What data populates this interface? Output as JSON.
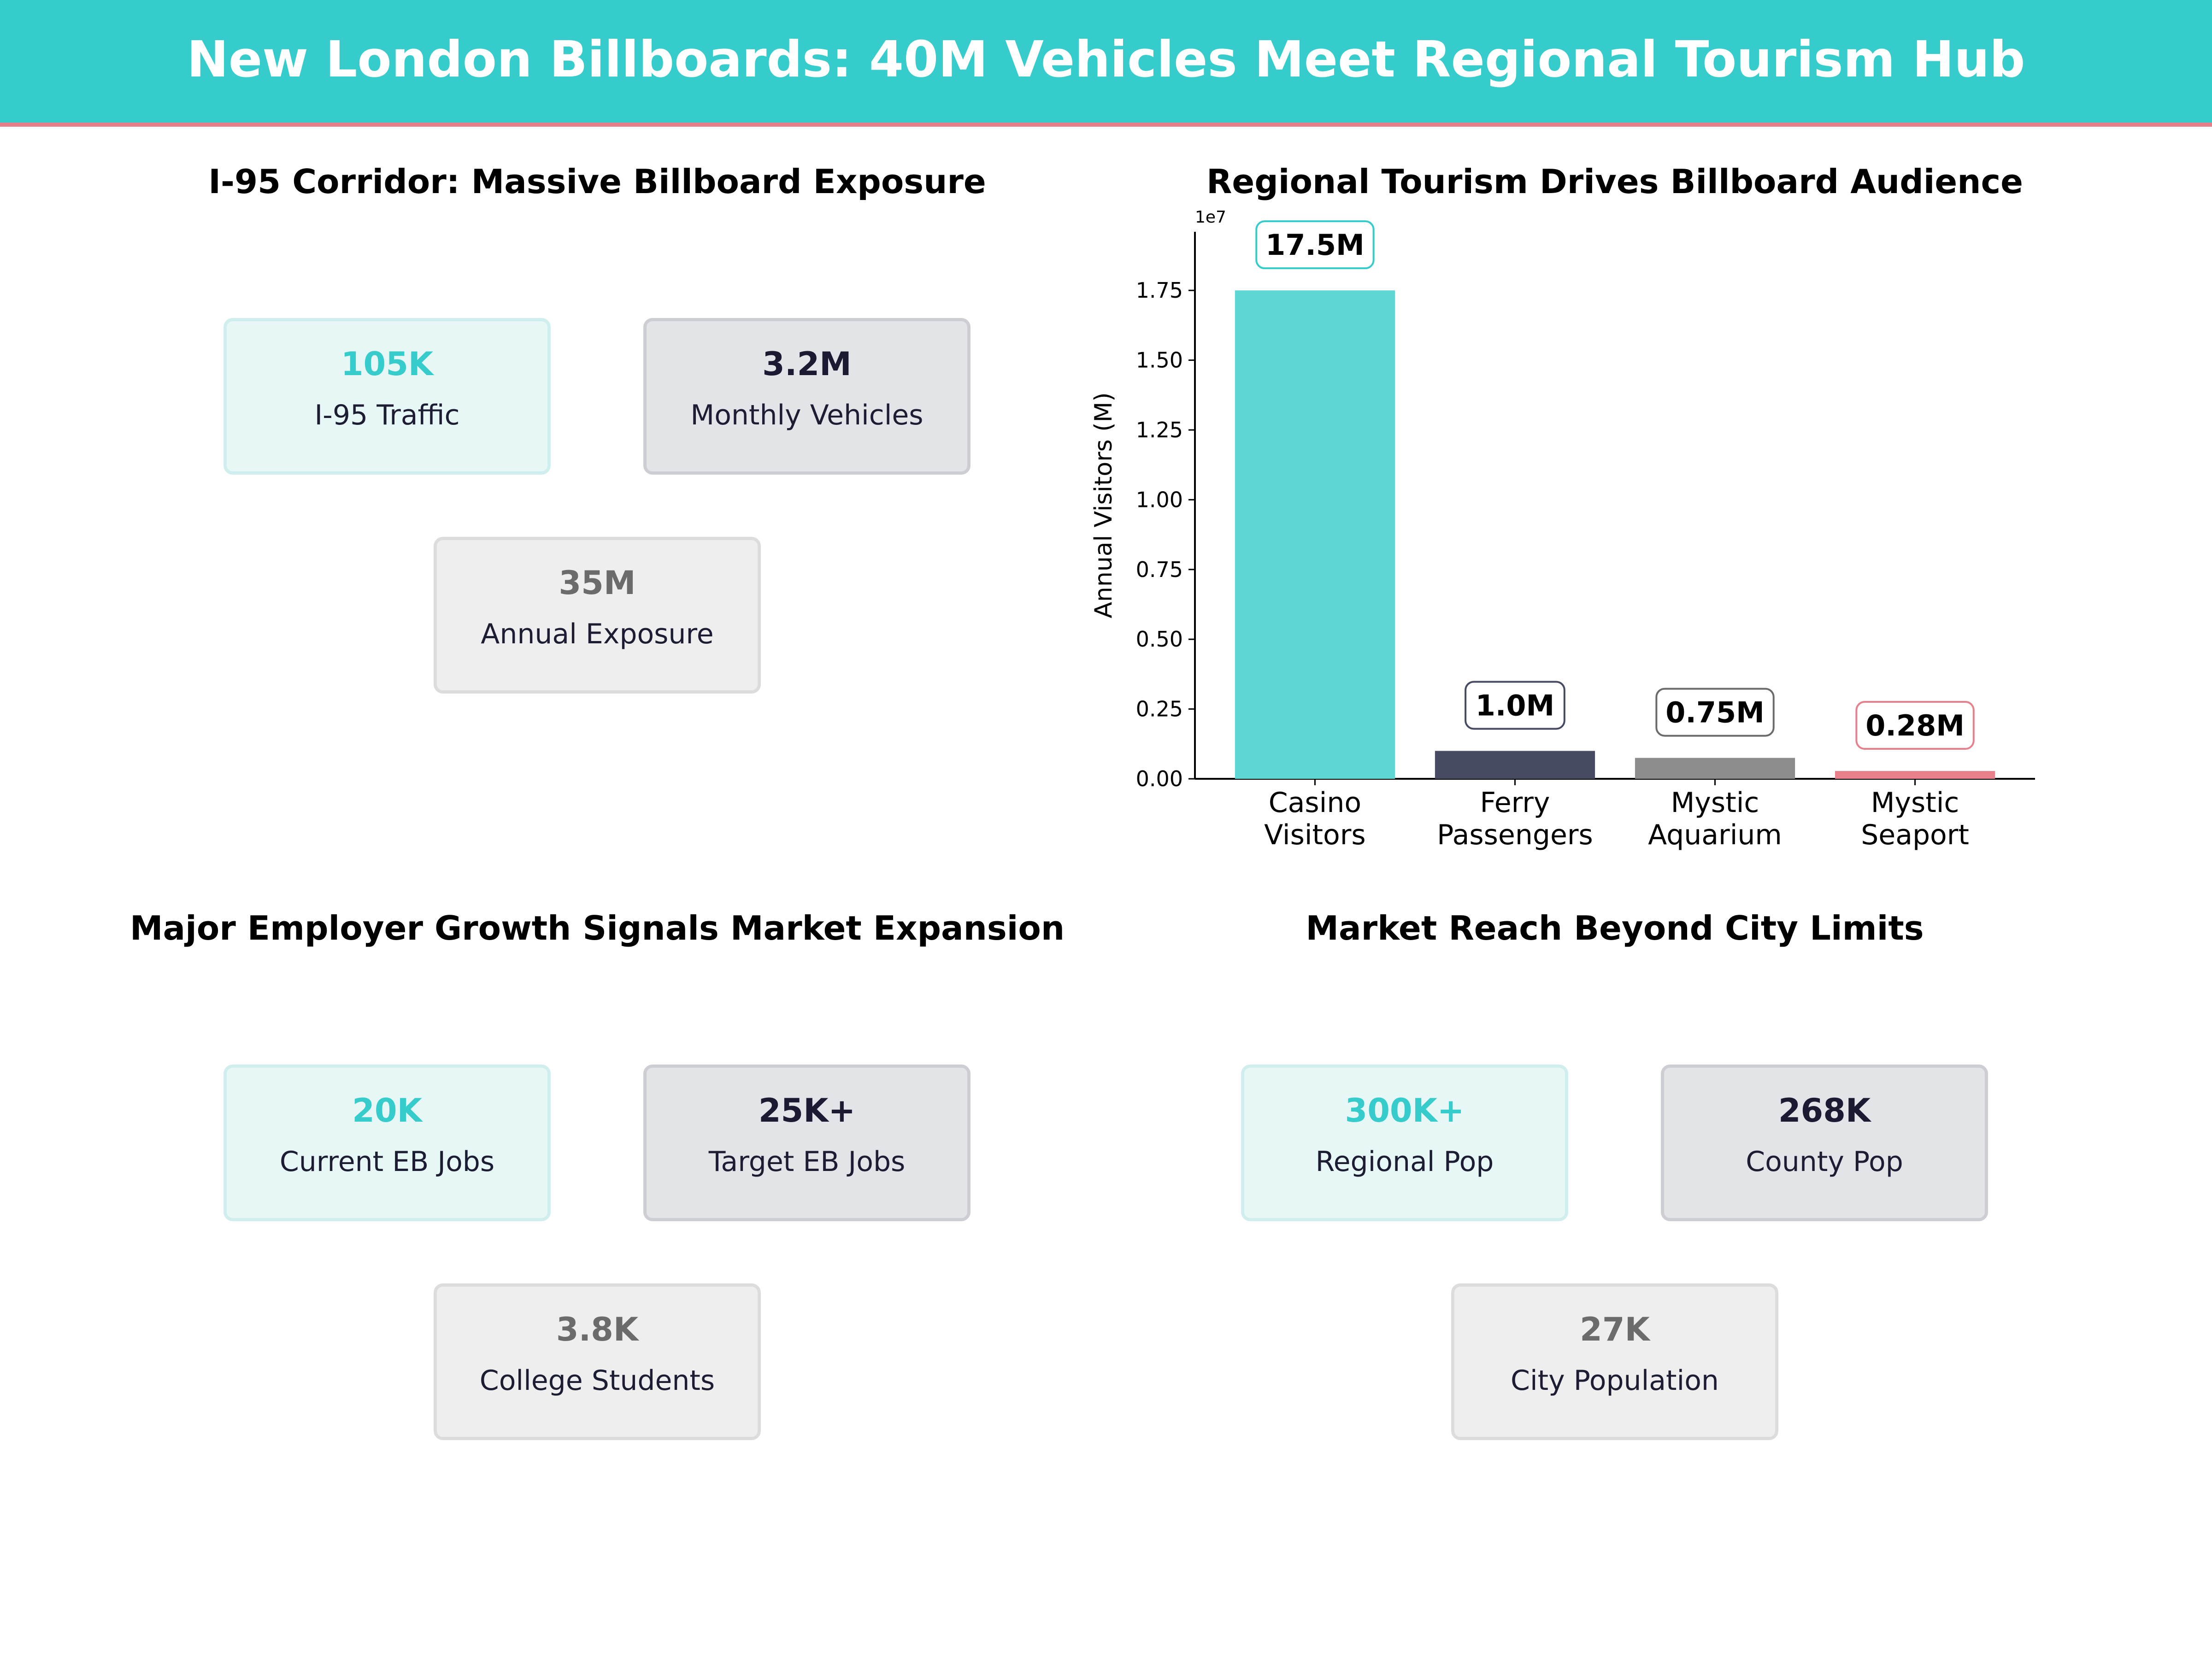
{
  "header": {
    "title": "New London Billboards: 40M Vehicles Meet Regional Tourism Hub"
  },
  "colors": {
    "teal": "#36cccc",
    "bar_teal": "#5dd6d4",
    "navy": "#474a63",
    "gray": "#8c8c8c",
    "pink": "#e8808c"
  },
  "panels": {
    "corridor": {
      "title": "I-95 Corridor: Massive Billboard Exposure",
      "cards": [
        {
          "value": "105K",
          "label": "I-95 Traffic"
        },
        {
          "value": "3.2M",
          "label": "Monthly Vehicles"
        },
        {
          "value": "35M",
          "label": "Annual Exposure"
        }
      ]
    },
    "employer": {
      "title": "Major Employer Growth Signals Market Expansion",
      "cards": [
        {
          "value": "20K",
          "label": "Current EB Jobs"
        },
        {
          "value": "25K+",
          "label": "Target EB Jobs"
        },
        {
          "value": "3.8K",
          "label": "College Students"
        }
      ]
    },
    "reach": {
      "title": "Market Reach Beyond City Limits",
      "cards": [
        {
          "value": "300K+",
          "label": "Regional Pop"
        },
        {
          "value": "268K",
          "label": "County Pop"
        },
        {
          "value": "27K",
          "label": "City Population"
        }
      ]
    }
  },
  "chart_data": {
    "type": "bar",
    "title": "Regional Tourism Drives Billboard Audience",
    "ylabel": "Annual Visitors (M)",
    "offset_text": "1e7",
    "categories": [
      [
        "Casino",
        "Visitors"
      ],
      [
        "Ferry",
        "Passengers"
      ],
      [
        "Mystic",
        "Aquarium"
      ],
      [
        "Mystic",
        "Seaport"
      ]
    ],
    "values": [
      17500000,
      1000000,
      750000,
      280000
    ],
    "data_labels": [
      "17.5M",
      "1.0M",
      "0.75M",
      "0.28M"
    ],
    "bar_colors": [
      "#5dd6d4",
      "#474a63",
      "#8c8c8c",
      "#e8808c"
    ],
    "label_box_colors": [
      "#36cccc",
      "#474a63",
      "#6b6b6b",
      "#e8808c"
    ],
    "ylim": [
      0,
      19600000
    ],
    "yticks": [
      0,
      2500000,
      5000000,
      7500000,
      10000000,
      12500000,
      15000000,
      17500000
    ],
    "ytick_labels": [
      "0.00",
      "0.25",
      "0.50",
      "0.75",
      "1.00",
      "1.25",
      "1.50",
      "1.75"
    ],
    "grid": false,
    "legend": "none"
  }
}
